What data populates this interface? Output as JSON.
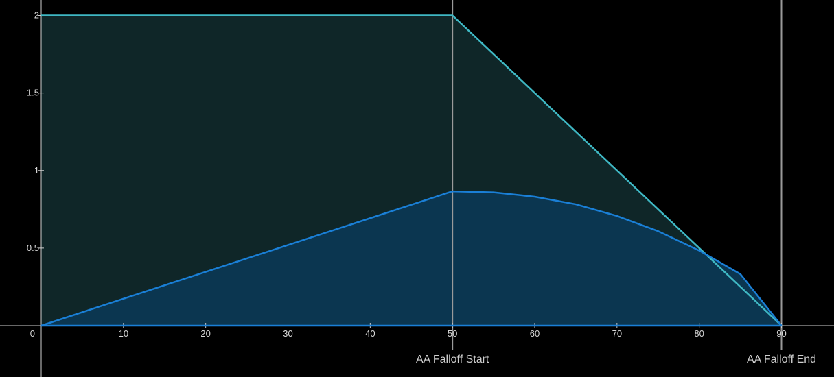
{
  "chart_data": {
    "type": "area",
    "title": "",
    "xlabel": "",
    "ylabel": "",
    "xlim": [
      0,
      96
    ],
    "ylim": [
      -0.3,
      2.05
    ],
    "x_ticks": [
      {
        "value": 0,
        "label": "0"
      },
      {
        "value": 10,
        "label": "10"
      },
      {
        "value": 20,
        "label": "20"
      },
      {
        "value": 30,
        "label": "30"
      },
      {
        "value": 40,
        "label": "40"
      },
      {
        "value": 50,
        "label": "50"
      },
      {
        "value": 60,
        "label": "60"
      },
      {
        "value": 70,
        "label": "70"
      },
      {
        "value": 80,
        "label": "80"
      },
      {
        "value": 90,
        "label": "90"
      }
    ],
    "y_ticks": [
      {
        "value": 0.5,
        "label": "0.5"
      },
      {
        "value": 1,
        "label": "1"
      },
      {
        "value": 1.5,
        "label": "1.5"
      },
      {
        "value": 2,
        "label": "2"
      }
    ],
    "grid": false,
    "markers": [
      {
        "x": 50,
        "label": "AA Falloff Start"
      },
      {
        "x": 90,
        "label": "AA Falloff End"
      }
    ],
    "series": [
      {
        "color": "#3fb8c4",
        "fill": "#0f2628",
        "x": [
          0,
          50,
          90
        ],
        "y": [
          2,
          2,
          0
        ]
      },
      {
        "color": "#1a7fd6",
        "fill": "#0b3650",
        "x": [
          0,
          50,
          55,
          60,
          65,
          70,
          75,
          80,
          85,
          90
        ],
        "y": [
          0,
          0.866,
          0.859,
          0.831,
          0.782,
          0.707,
          0.609,
          0.484,
          0.332,
          0
        ]
      }
    ],
    "axis_color": "#d0d0d0",
    "marker_line_color": "#9a9a9a"
  }
}
